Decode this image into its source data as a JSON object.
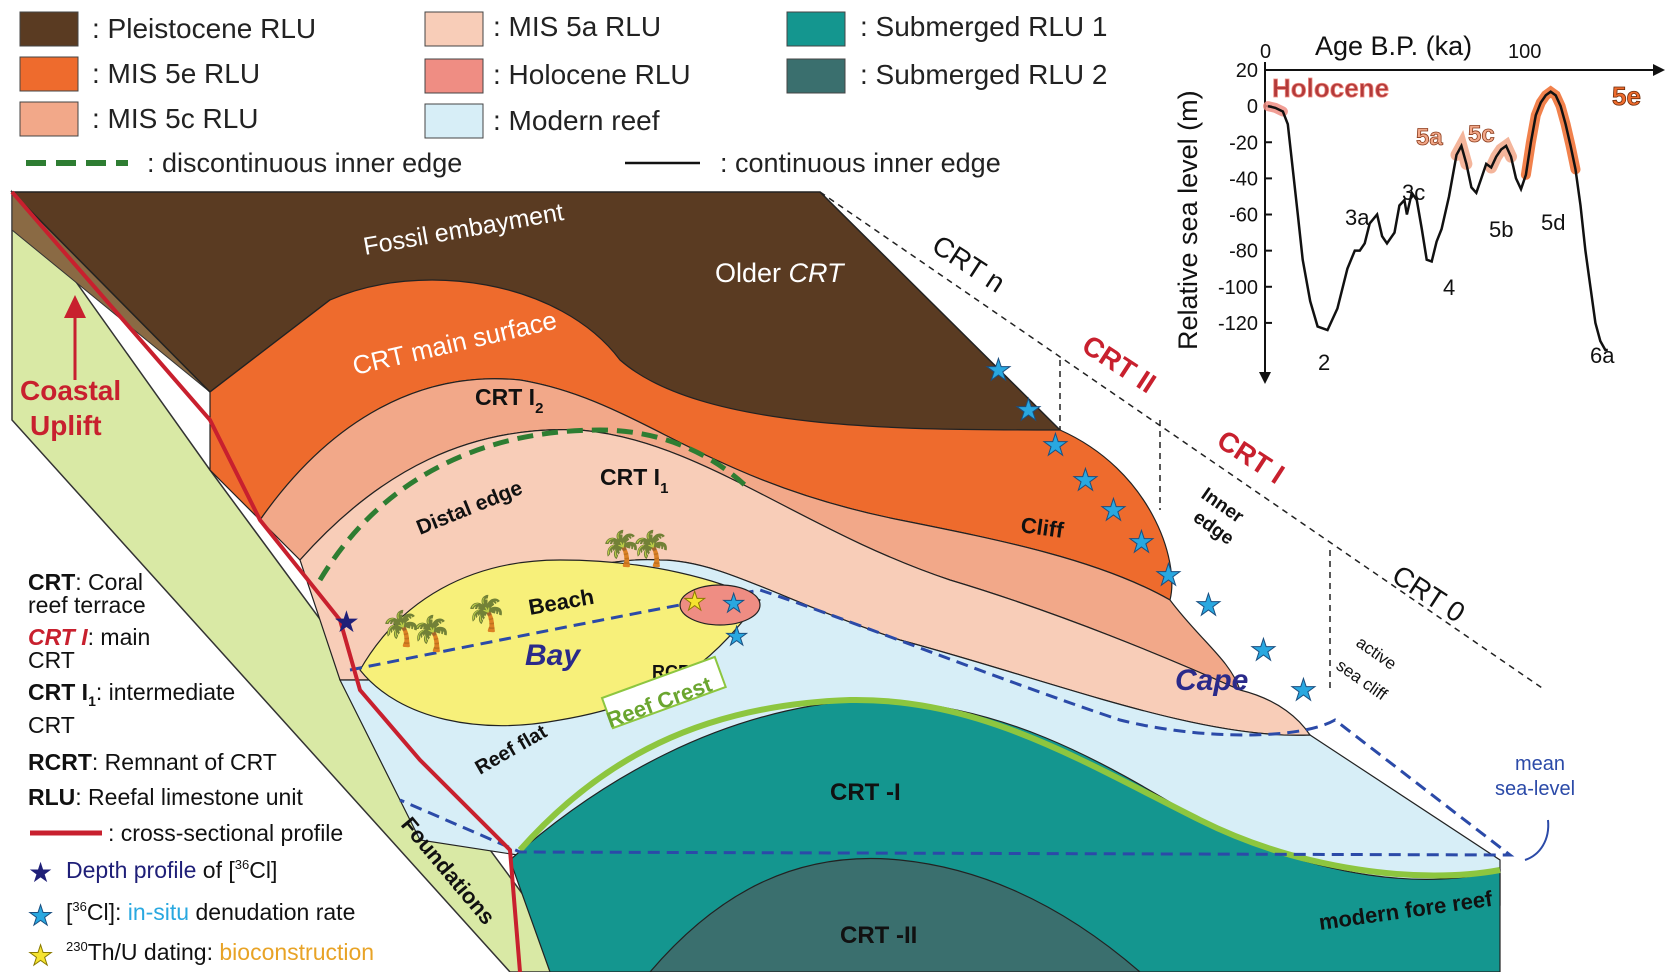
{
  "colors": {
    "pleistocene": "#5a3b22",
    "mis5e": "#ee6b2d",
    "mis5c": "#f2a889",
    "mis5a": "#f8cdb8",
    "holocene": "#ef8d83",
    "modern_reef": "#d7eef7",
    "submerged1": "#14968f",
    "submerged2": "#3a6f6e",
    "foundations": "#d9e9a5",
    "beach": "#f7f07a",
    "reef_crest": "#8dc63f",
    "water_line": "#2b4aa8",
    "dark_green": "#2e7d32",
    "red_accent": "#c8202e"
  },
  "legend": {
    "pleistocene": ": Pleistocene RLU",
    "mis5e": ": MIS 5e RLU",
    "mis5c": ": MIS 5c RLU",
    "mis5a": ": MIS 5a RLU",
    "holocene": ": Holocene RLU",
    "modern_reef": ": Modern reef",
    "submerged1": ": Submerged RLU 1",
    "submerged2": ": Submerged RLU 2",
    "discontinuous": ": discontinuous inner edge",
    "continuous": ": continuous inner edge"
  },
  "diagram_labels": {
    "fossil_embayment": "Fossil embayment",
    "older_crt_prefix": "Older ",
    "older_crt_italic": "CRT",
    "crt_main_surface": "CRT main surface",
    "crt_i2_main": "CRT I",
    "crt_i2_sub": "2",
    "crt_i1_main": "CRT I",
    "crt_i1_sub": "1",
    "distal_edge": "Distal edge",
    "beach": "Beach",
    "bay": "Bay",
    "rcrt": "RCRT",
    "reef_flat": "Reef flat",
    "reef_crest": "Reef Crest",
    "crt_minus_i": "CRT -I",
    "crt_minus_ii": "CRT -II",
    "modern_fore_reef": "modern fore reef",
    "foundations": "Foundations",
    "coastal": "Coastal",
    "uplift": "Uplift",
    "cape": "Cape",
    "cliff": "Cliff",
    "inner": "Inner",
    "edge": "edge",
    "active": "active",
    "sea_cliff": "sea cliff",
    "mean": "mean",
    "sea_level": "sea-level",
    "crt_n": "CRT n",
    "crt_ii": "CRT II",
    "crt_i": "CRT I",
    "crt_0": "CRT 0"
  },
  "key": {
    "crt_abbr": "CRT",
    "crt_def1": ": Coral",
    "crt_def2": "reef terrace",
    "crti_abbr": "CRT I",
    "crti_def1": ": main",
    "crti_def2": "CRT",
    "crti1_abbr": "CRT I",
    "crti1_sub": "1",
    "crti1_def1": ": intermediate",
    "crti1_def2": "CRT",
    "rcrt_abbr": "RCRT",
    "rcrt_def": ": Remnant of CRT",
    "rlu_abbr": "RLU",
    "rlu_def": ": Reefal limestone unit",
    "profile_def": ": cross-sectional profile",
    "depth_a": "Depth profile",
    "depth_b": " of [",
    "depth_sup": "36",
    "depth_c": "Cl]",
    "cl_a": "[",
    "cl_sup": "36",
    "cl_b": "Cl]: ",
    "cl_c": "in-situ",
    "cl_d": " denudation rate",
    "th_sup": "230",
    "th_a": "Th/U dating: ",
    "th_b": "bioconstruction"
  },
  "chart_data": {
    "type": "line",
    "title": "",
    "xlabel": "Age B.P. (ka)",
    "ylabel": "Relative sea level (m)",
    "xlim": [
      0,
      150
    ],
    "ylim": [
      -135,
      20
    ],
    "x_ticks": [
      "0",
      "100"
    ],
    "y_ticks": [
      "20",
      "0",
      "-20",
      "-40",
      "-60",
      "-80",
      "-100",
      "-120"
    ],
    "x": [
      0,
      3,
      6,
      8,
      10,
      12,
      14,
      17,
      20,
      24,
      28,
      32,
      35,
      37,
      39,
      41,
      44,
      46,
      48,
      50,
      51,
      53,
      55,
      56,
      58,
      60,
      62,
      64,
      66,
      68,
      70,
      73,
      76,
      78,
      80,
      82,
      84,
      86,
      88,
      90,
      92,
      94,
      96,
      98,
      100,
      102,
      104,
      106,
      108,
      110,
      112,
      114,
      116,
      118,
      120,
      122,
      124,
      126,
      128,
      130,
      132,
      134,
      136,
      137
    ],
    "values": [
      0,
      -1,
      -3,
      -10,
      -35,
      -60,
      -85,
      -108,
      -122,
      -124,
      -112,
      -90,
      -80,
      -80,
      -76,
      -65,
      -60,
      -72,
      -76,
      -72,
      -70,
      -55,
      -52,
      -60,
      -48,
      -52,
      -68,
      -85,
      -86,
      -75,
      -68,
      -50,
      -27,
      -22,
      -32,
      -45,
      -48,
      -40,
      -32,
      -34,
      -28,
      -24,
      -22,
      -28,
      -40,
      -46,
      -38,
      -20,
      -5,
      2,
      6,
      8,
      6,
      0,
      -10,
      -22,
      -35,
      -55,
      -80,
      -100,
      -120,
      -130,
      -135,
      -135
    ],
    "peak_labels": [
      "Holocene",
      "5a",
      "5c",
      "5e"
    ],
    "trough_labels": [
      "2",
      "3a",
      "3c",
      "4",
      "5b",
      "5d",
      "6a"
    ],
    "highlight_series": [
      "Holocene",
      "5a",
      "5c",
      "5e"
    ]
  }
}
